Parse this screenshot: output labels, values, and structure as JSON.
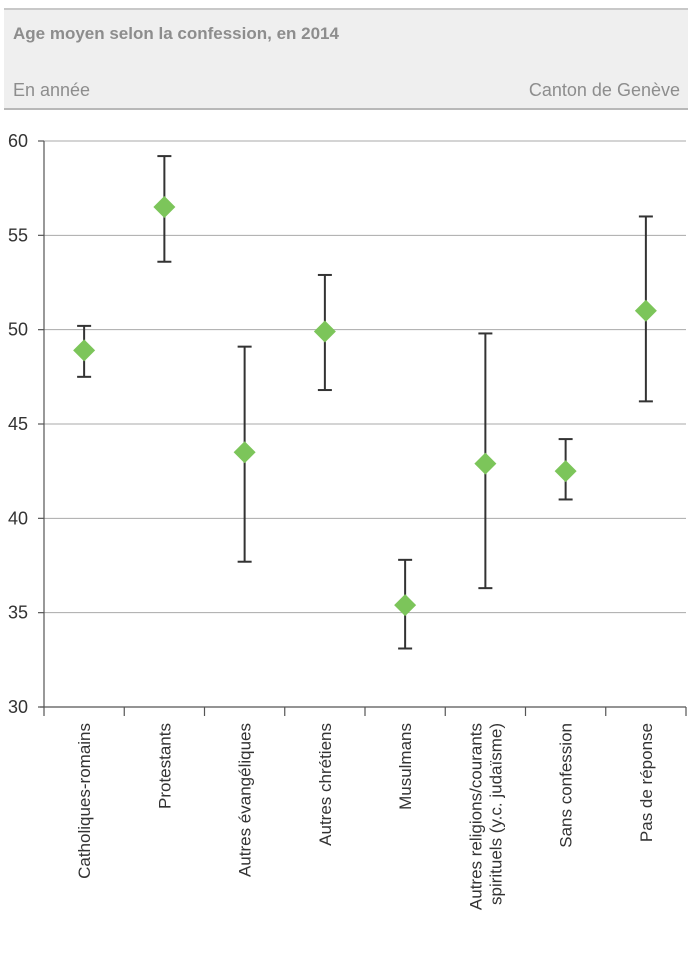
{
  "header": {
    "title": "Age moyen selon la confession, en 2014",
    "unit": "En année",
    "source": "Canton de Genève"
  },
  "colors": {
    "marker": "#7cc55a",
    "errorbar": "#333333",
    "grid": "#aaaaaa",
    "header_bg": "#efefef"
  },
  "chart_data": {
    "type": "scatter",
    "title": "Age moyen selon la confession, en 2014",
    "ylabel": "En année",
    "ylim": [
      30,
      60
    ],
    "yticks": [
      30,
      35,
      40,
      45,
      50,
      55,
      60
    ],
    "grid": true,
    "categories": [
      [
        "Catholiques-romains"
      ],
      [
        "Protestants"
      ],
      [
        "Autres évangéliques"
      ],
      [
        "Autres chrétiens"
      ],
      [
        "Musulmans"
      ],
      [
        "Autres religions/courants",
        "spirituels (y.c. judaïsme)"
      ],
      [
        "Sans confession"
      ],
      [
        "Pas de réponse"
      ]
    ],
    "values": [
      48.9,
      56.5,
      43.5,
      49.9,
      35.4,
      42.9,
      42.5,
      51.0
    ],
    "lower": [
      47.5,
      53.6,
      37.7,
      46.8,
      33.1,
      36.3,
      41.0,
      46.2
    ],
    "upper": [
      50.2,
      59.2,
      49.1,
      52.9,
      37.8,
      49.8,
      44.2,
      56.0
    ]
  }
}
